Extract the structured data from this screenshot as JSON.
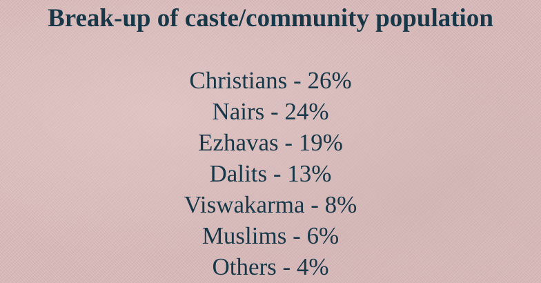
{
  "slide": {
    "title": "Break-up of caste/community population",
    "items": [
      "Christians - 26%",
      "Nairs - 24%",
      "Ezhavas - 19%",
      "Dalits - 13%",
      "Viswakarma - 8%",
      "Muslims - 6%",
      "Others - 4%"
    ]
  },
  "colors": {
    "background": "#dcbcbc",
    "text": "#173848"
  }
}
